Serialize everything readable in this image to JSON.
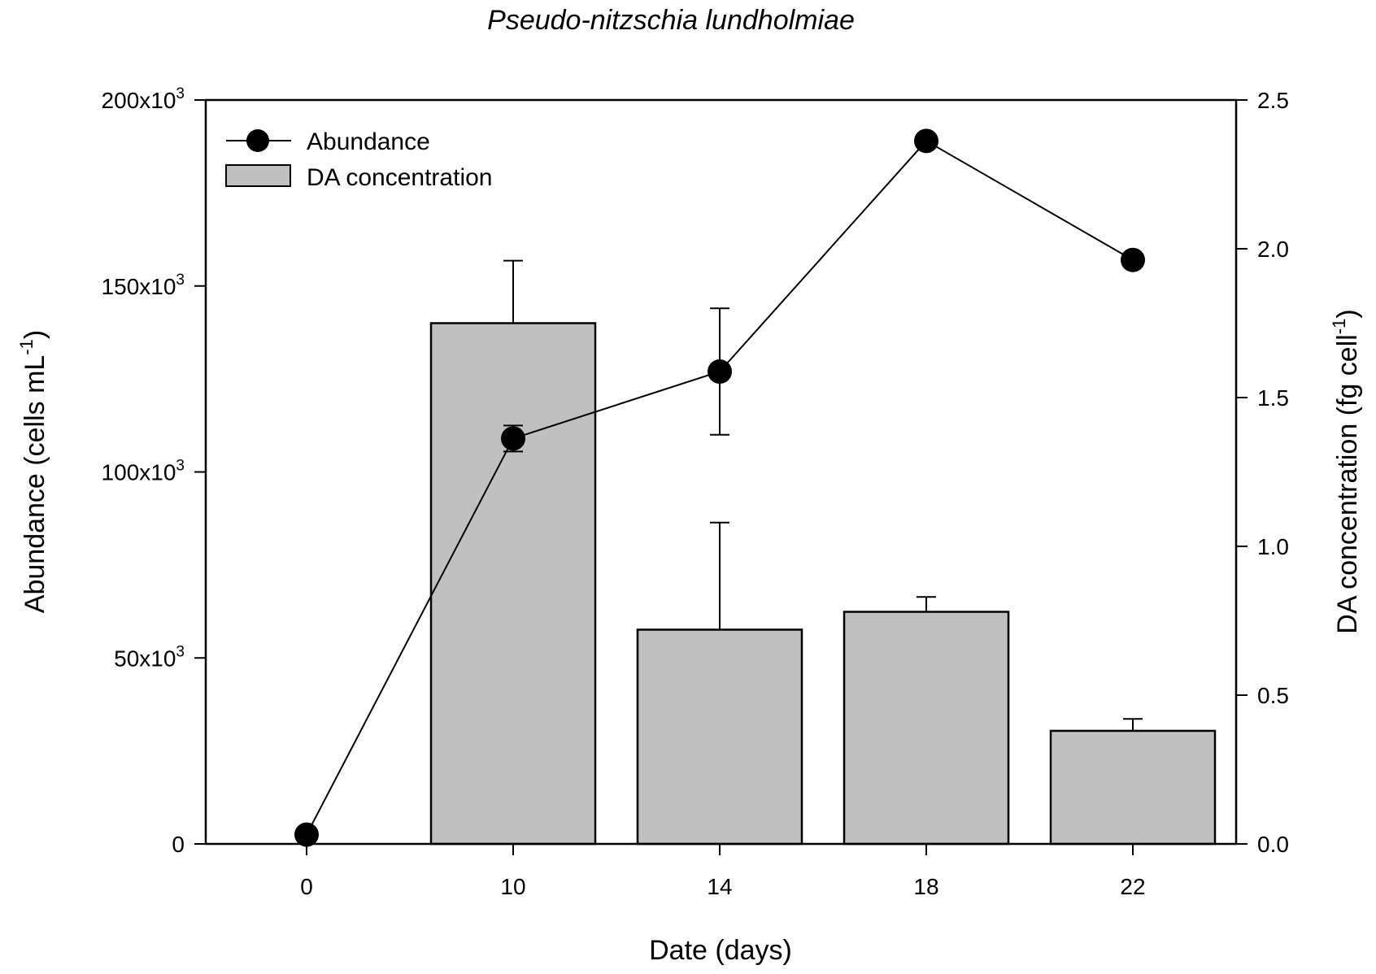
{
  "chart_data": {
    "type": "bar",
    "title": "Pseudo-nitzschia lundholmiae",
    "xlabel": "Date (days)",
    "ylabel_left": {
      "main": "Abundance (cells mL",
      "sup": "-1",
      "close": ")"
    },
    "ylabel_right": {
      "main": "DA concentration (fg cell",
      "sup": "-1",
      "close": ")"
    },
    "categories": [
      "0",
      "10",
      "14",
      "18",
      "22"
    ],
    "y_left": {
      "lim": [
        0,
        200000
      ],
      "ticks": [
        {
          "value": 0,
          "base": "0",
          "exp": ""
        },
        {
          "value": 50000,
          "base": "50x10",
          "exp": "3"
        },
        {
          "value": 100000,
          "base": "100x10",
          "exp": "3"
        },
        {
          "value": 150000,
          "base": "150x10",
          "exp": "3"
        },
        {
          "value": 200000,
          "base": "200x10",
          "exp": "3"
        }
      ]
    },
    "y_right": {
      "lim": [
        0,
        2.5
      ],
      "ticks": [
        "0.0",
        "0.5",
        "1.0",
        "1.5",
        "2.0",
        "2.5"
      ]
    },
    "series": [
      {
        "name": "Abundance",
        "kind": "line",
        "axis": "left",
        "values": [
          2500,
          109000,
          127000,
          189000,
          157000
        ],
        "errors": [
          0,
          3500,
          17000,
          0,
          0
        ]
      },
      {
        "name": "DA concentration",
        "kind": "bar",
        "axis": "right",
        "values": [
          0,
          1.75,
          0.72,
          0.78,
          0.38
        ],
        "errors": [
          0,
          0.21,
          0.36,
          0.05,
          0.04
        ]
      }
    ],
    "legend": "top-left",
    "grid": false,
    "colors": {
      "bar_fill": "#c0c0c0",
      "line": "#000000",
      "marker": "#000000"
    }
  }
}
